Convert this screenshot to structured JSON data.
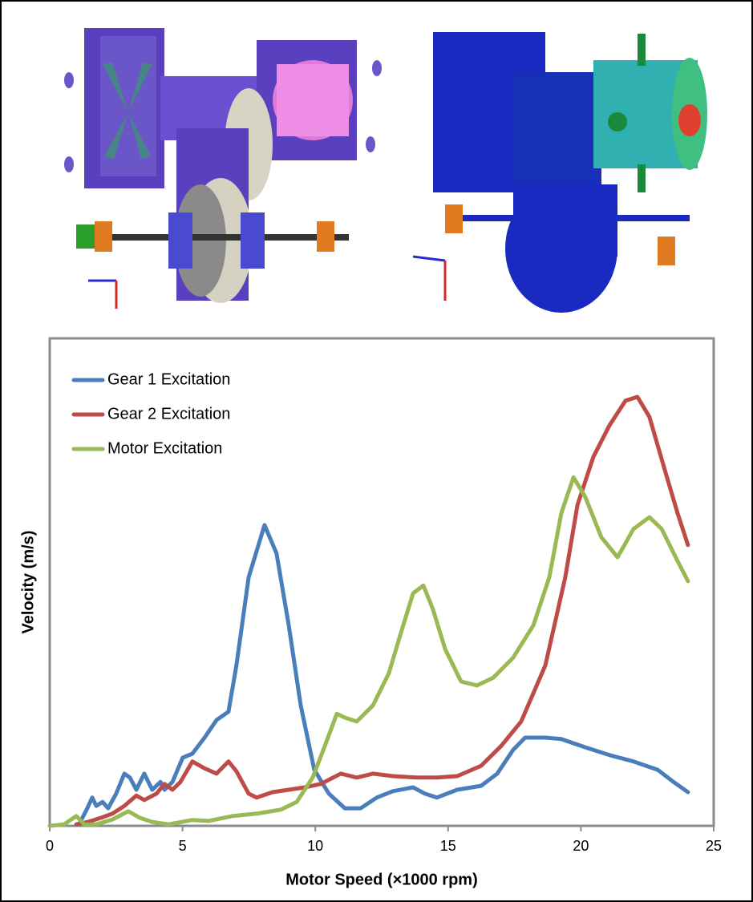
{
  "chart_data": {
    "type": "line",
    "xlabel": "Motor Speed (×1000 rpm)",
    "ylabel": "Velocity (m/s)",
    "xlim": [
      0,
      25
    ],
    "xticks": [
      0,
      5,
      10,
      15,
      20,
      25
    ],
    "ylim": [
      0,
      100
    ],
    "legend": "upper left",
    "series": [
      {
        "name": "Gear 1 Excitation",
        "color": "#4a7ebb",
        "x": [
          1.15,
          1.39,
          1.6,
          1.75,
          1.99,
          2.2,
          2.5,
          2.81,
          3.02,
          3.26,
          3.56,
          3.86,
          4.17,
          4.32,
          4.62,
          5.01,
          5.37,
          5.83,
          6.28,
          6.73,
          7.03,
          7.49,
          8.09,
          8.54,
          9.0,
          9.45,
          9.96,
          10.51,
          11.11,
          11.71,
          12.32,
          12.92,
          13.68,
          14.13,
          14.58,
          15.34,
          16.24,
          16.85,
          17.45,
          17.9,
          18.66,
          19.26,
          20.17,
          21.08,
          21.98,
          22.89,
          23.49,
          24.03
        ],
        "values": [
          0.8,
          3.3,
          5.8,
          4.1,
          4.9,
          3.6,
          6.6,
          10.7,
          9.9,
          7.4,
          10.7,
          7.4,
          9.0,
          7.4,
          9.0,
          14.0,
          14.8,
          18.1,
          21.7,
          23.4,
          32.9,
          51.0,
          61.7,
          55.9,
          41.1,
          24.7,
          11.5,
          6.6,
          3.6,
          3.6,
          5.8,
          7.1,
          7.9,
          6.6,
          5.8,
          7.4,
          8.2,
          10.7,
          15.6,
          18.1,
          18.1,
          17.8,
          16.1,
          14.5,
          13.2,
          11.5,
          9.0,
          6.9
        ]
      },
      {
        "name": "Gear 2 Excitation",
        "color": "#be4b48",
        "x": [
          1.0,
          1.45,
          1.9,
          2.36,
          2.81,
          3.26,
          3.56,
          4.02,
          4.32,
          4.62,
          4.92,
          5.37,
          5.83,
          6.28,
          6.73,
          7.03,
          7.49,
          7.79,
          8.39,
          9.0,
          9.6,
          10.21,
          10.96,
          11.56,
          12.17,
          12.92,
          13.83,
          14.58,
          15.34,
          16.24,
          17.0,
          17.75,
          18.66,
          19.41,
          19.87,
          20.47,
          21.08,
          21.68,
          22.13,
          22.58,
          23.19,
          23.64,
          24.03
        ],
        "values": [
          0.3,
          0.8,
          1.6,
          2.5,
          4.1,
          6.2,
          5.3,
          6.6,
          8.6,
          7.4,
          9.0,
          13.2,
          11.8,
          10.7,
          13.2,
          11.2,
          6.6,
          5.8,
          6.9,
          7.4,
          7.9,
          8.6,
          10.7,
          9.9,
          10.7,
          10.2,
          9.9,
          9.9,
          10.2,
          12.3,
          16.4,
          21.4,
          32.9,
          51.0,
          65.8,
          75.7,
          82.2,
          87.2,
          88.0,
          83.9,
          72.4,
          64.1,
          57.6
        ]
      },
      {
        "name": "Motor Excitation",
        "color": "#98b954",
        "x": [
          0,
          0.54,
          1.0,
          1.3,
          1.75,
          2.36,
          2.96,
          3.41,
          3.86,
          4.47,
          5.37,
          5.98,
          6.88,
          7.79,
          8.7,
          9.3,
          9.9,
          10.36,
          10.81,
          11.11,
          11.56,
          12.17,
          12.77,
          13.22,
          13.68,
          14.07,
          14.43,
          14.89,
          15.49,
          16.09,
          16.7,
          17.45,
          18.21,
          18.81,
          19.26,
          19.72,
          20.17,
          20.77,
          21.38,
          21.98,
          22.58,
          23.04,
          23.64,
          24.03
        ],
        "values": [
          0,
          0.3,
          2.0,
          0.3,
          0.3,
          1.3,
          3.0,
          1.6,
          0.8,
          0.3,
          1.2,
          1.0,
          2.0,
          2.5,
          3.3,
          4.9,
          9.9,
          16.4,
          23.0,
          22.2,
          21.4,
          24.7,
          31.3,
          39.5,
          47.7,
          49.3,
          44.4,
          36.2,
          29.6,
          28.8,
          30.4,
          34.5,
          41.1,
          51.0,
          64.1,
          71.5,
          67.4,
          59.2,
          55.1,
          60.9,
          63.3,
          60.9,
          54.3,
          50.2
        ]
      }
    ]
  }
}
